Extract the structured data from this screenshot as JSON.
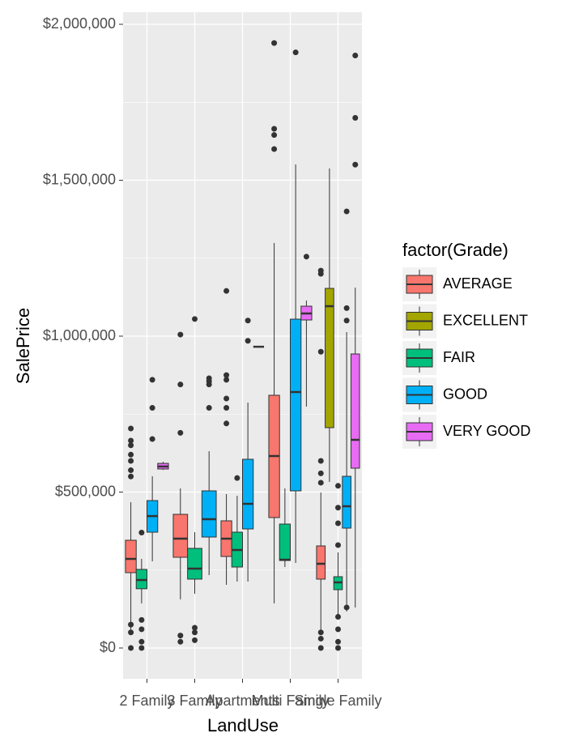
{
  "chart_data": {
    "type": "boxplot",
    "x_label": "LandUse",
    "y_label": "SalePrice",
    "legend_title": "factor(Grade)",
    "categories": [
      "2 Family",
      "3 Family",
      "Apartments",
      "Multi Family",
      "Single Family"
    ],
    "ylim": [
      -98700,
      2039000
    ],
    "yticks": [
      {
        "value": 0,
        "label": "$0"
      },
      {
        "value": 500000,
        "label": "$500,000"
      },
      {
        "value": 1000000,
        "label": "$1,000,000"
      },
      {
        "value": 1500000,
        "label": "$1,500,000"
      },
      {
        "value": 2000000,
        "label": "$2,000,000"
      }
    ],
    "grid": true,
    "series": [
      {
        "name": "AVERAGE",
        "color": "#f8766d",
        "values": [
          {
            "min": 52000,
            "q1": 241600,
            "median": 285700,
            "q3": 345500,
            "max": 467500,
            "outliers": [
              704000,
              665000,
              650000,
              620000,
              600000,
              570000,
              550000,
              75000,
              50000,
              0
            ]
          },
          {
            "min": 155800,
            "q1": 290900,
            "median": 350600,
            "q3": 428600,
            "max": 511700,
            "outliers": [
              1005000,
              845000,
              690000,
              40000,
              20000
            ]
          },
          {
            "min": 202600,
            "q1": 293500,
            "median": 350600,
            "q3": 407800,
            "max": 493500,
            "outliers": [
              1145000,
              875000,
              860000,
              800000,
              770000,
              720000
            ]
          },
          {
            "min": 143000,
            "q1": 418200,
            "median": 615600,
            "q3": 810400,
            "max": 1298700,
            "outliers": [
              1940000,
              1665000,
              1645000,
              1600000
            ]
          },
          {
            "min": 44200,
            "q1": 220800,
            "median": 270100,
            "q3": 327300,
            "max": 498700,
            "outliers": [
              1210000,
              1200000,
              950000,
              600000,
              560000,
              530000,
              50000,
              30000,
              0
            ]
          }
        ]
      },
      {
        "name": "EXCELLENT",
        "color": "#a3a500",
        "values": [
          null,
          null,
          null,
          null,
          {
            "min": 532500,
            "q1": 706500,
            "median": 1096100,
            "q3": 1153200,
            "max": 1537700,
            "outliers": []
          }
        ]
      },
      {
        "name": "FAIR",
        "color": "#00bf7d",
        "values": [
          {
            "min": 143000,
            "q1": 190000,
            "median": 218000,
            "q3": 252000,
            "max": 285700,
            "outliers": [
              370000,
              90000,
              60000,
              20000,
              0
            ]
          },
          {
            "min": 174000,
            "q1": 220800,
            "median": 254500,
            "q3": 319500,
            "max": 371400,
            "outliers": [
              1055000,
              65000,
              50000,
              25000
            ]
          },
          {
            "min": 213000,
            "q1": 259700,
            "median": 314300,
            "q3": 371400,
            "max": 488300,
            "outliers": [
              545000
            ]
          },
          {
            "min": 259700,
            "q1": 280500,
            "median": 283000,
            "q3": 397400,
            "max": 511700,
            "outliers": []
          },
          {
            "min": 103900,
            "q1": 187000,
            "median": 210400,
            "q3": 228600,
            "max": 306500,
            "outliers": [
              520000,
              450000,
              400000,
              330000,
              100000,
              60000,
              20000,
              0
            ]
          }
        ]
      },
      {
        "name": "GOOD",
        "color": "#00b0f6",
        "values": [
          {
            "min": 278000,
            "q1": 371400,
            "median": 423000,
            "q3": 472700,
            "max": 550600,
            "outliers": [
              860000,
              770000,
              670000
            ]
          },
          {
            "min": 233800,
            "q1": 355800,
            "median": 413000,
            "q3": 503900,
            "max": 631000,
            "outliers": [
              865000,
              855000,
              845000,
              770000
            ]
          },
          {
            "min": 213000,
            "q1": 381800,
            "median": 462300,
            "q3": 605200,
            "max": 787000,
            "outliers": [
              1050000,
              985000
            ]
          },
          {
            "min": 272700,
            "q1": 503900,
            "median": 820800,
            "q3": 1054500,
            "max": 1550600,
            "outliers": [
              1910000
            ]
          },
          {
            "min": 116900,
            "q1": 384400,
            "median": 454500,
            "q3": 550600,
            "max": 1013000,
            "outliers": [
              1400000,
              1090000,
              1050000,
              130000
            ]
          }
        ]
      },
      {
        "name": "VERY GOOD",
        "color": "#e76bf3",
        "values": [
          {
            "min": 571000,
            "q1": 574000,
            "median": 582000,
            "q3": 592000,
            "max": 597000,
            "outliers": []
          },
          null,
          {
            "min": 966000,
            "q1": 966000,
            "median": 966000,
            "q3": 966000,
            "max": 966000,
            "outliers": []
          },
          {
            "min": 774000,
            "q1": 1051900,
            "median": 1072700,
            "q3": 1096100,
            "max": 1114300,
            "outliers": [
              1255000
            ]
          },
          {
            "min": 129900,
            "q1": 576600,
            "median": 667500,
            "q3": 942900,
            "max": 1155800,
            "outliers": [
              1900000,
              1700000,
              1550000
            ]
          }
        ]
      }
    ]
  }
}
